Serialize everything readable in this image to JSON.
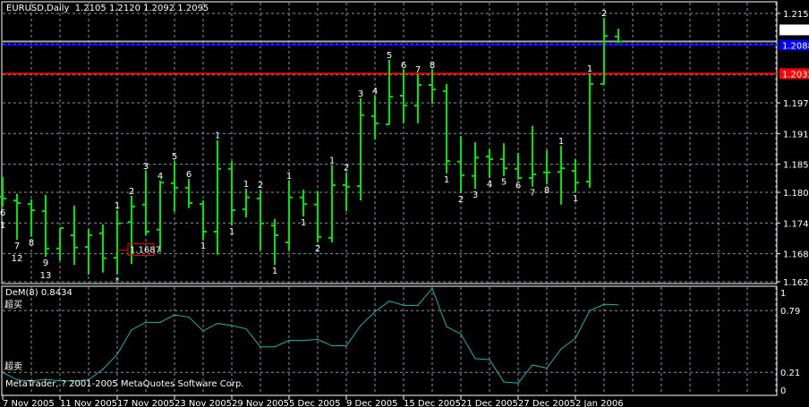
{
  "header": {
    "symbol_title": "EURUSD,Daily  1.2105 1.2120 1.2092 1.2095"
  },
  "indicator": {
    "title": "DeM(8) 0.8434",
    "overbought_label": "超买",
    "oversold_label": "超卖",
    "copyright": "MetaTrader, ? 2001-2005 MetaQuotes Software Corp.",
    "axis_labels": [
      "1",
      "0.79",
      "0.21",
      "0"
    ],
    "levels": [
      0.79,
      0.21
    ],
    "line_color": "#20B2AA"
  },
  "colors": {
    "bar": "#00E600",
    "grid": "#8494A4",
    "label_yellow": "#FFC000",
    "label_red": "#FF0000",
    "label_blue": "#0000FF",
    "line_blue": "#0000FF",
    "line_red": "#FF0000",
    "line_gray": "#A0A8B0"
  },
  "price_lines": [
    {
      "name": "bid-line",
      "price": 1.2095,
      "label": "1.2095",
      "color": "#A0A8B0",
      "label_bg": "#FFFFFF",
      "label_fg": "#000000"
    },
    {
      "name": "blue-hline",
      "price": 1.2088,
      "label": "1.2088",
      "color": "#0000FF",
      "label_bg": "#0000FF",
      "label_fg": "#FFFFFF"
    },
    {
      "name": "red-hline",
      "price": 1.2032,
      "label": "1.2032",
      "color": "#FF0000",
      "label_bg": "#FF0000",
      "label_fg": "#FFFFFF"
    }
  ],
  "price_annotation": {
    "text": "1.1687",
    "price": 1.1687,
    "bar": 8,
    "color": "#FF0000"
  },
  "chart_data": [
    {
      "type": "ohlc",
      "title": "EURUSD,Daily",
      "ylim": [
        1.1625,
        1.215
      ],
      "y_ticks": [
        "1.2150",
        "1.1975",
        "1.1915",
        "1.1855",
        "1.1800",
        "1.1740",
        "1.1680",
        "1.1625"
      ],
      "x_tick_labels": [
        "7 Nov 2005",
        "11 Nov 2005",
        "17 Nov 2005",
        "23 Nov 2005",
        "29 Nov 2005",
        "5 Dec 2005",
        "9 Dec 2005",
        "15 Dec 2005",
        "21 Dec 2005",
        "27 Dec 2005",
        "2 Jan 2006"
      ],
      "grid": true,
      "bars_ohlc": [
        [
          1.1791,
          1.183,
          1.1772,
          1.1788
        ],
        [
          1.1784,
          1.1797,
          1.1707,
          1.1779
        ],
        [
          1.1777,
          1.1786,
          1.1713,
          1.1765
        ],
        [
          1.1763,
          1.1795,
          1.1674,
          1.169
        ],
        [
          1.169,
          1.173,
          1.1667,
          1.173
        ],
        [
          1.1716,
          1.1774,
          1.1658,
          1.1692
        ],
        [
          1.1693,
          1.1728,
          1.1639,
          1.1716
        ],
        [
          1.172,
          1.1737,
          1.1643,
          1.1671
        ],
        [
          1.1672,
          1.1765,
          1.1639,
          1.1739
        ],
        [
          1.1742,
          1.1793,
          1.166,
          1.1772
        ],
        [
          1.1776,
          1.1842,
          1.1716,
          1.1723
        ],
        [
          1.1727,
          1.1823,
          1.1683,
          1.1819
        ],
        [
          1.1818,
          1.1861,
          1.1762,
          1.1809
        ],
        [
          1.1809,
          1.1826,
          1.1769,
          1.1779
        ],
        [
          1.1777,
          1.1784,
          1.1707,
          1.1723
        ],
        [
          1.1723,
          1.1902,
          1.1678,
          1.1846
        ],
        [
          1.1846,
          1.1861,
          1.1735,
          1.1765
        ],
        [
          1.1767,
          1.1807,
          1.1751,
          1.179
        ],
        [
          1.1788,
          1.1805,
          1.1686,
          1.1739
        ],
        [
          1.1735,
          1.1748,
          1.1658,
          1.1716
        ],
        [
          1.1702,
          1.1823,
          1.1686,
          1.179
        ],
        [
          1.179,
          1.1805,
          1.1753,
          1.1777
        ],
        [
          1.1776,
          1.1802,
          1.1702,
          1.1713
        ],
        [
          1.1711,
          1.1853,
          1.1702,
          1.1814
        ],
        [
          1.1814,
          1.1839,
          1.1763,
          1.1811
        ],
        [
          1.1812,
          1.1984,
          1.1784,
          1.1951
        ],
        [
          1.1949,
          1.1989,
          1.1903,
          1.1935
        ],
        [
          1.1933,
          1.2059,
          1.1933,
          1.1987
        ],
        [
          1.1989,
          1.204,
          1.1935,
          1.197
        ],
        [
          1.197,
          1.2031,
          1.1935,
          1.201
        ],
        [
          1.201,
          1.204,
          1.1973,
          1.2001
        ],
        [
          1.1998,
          1.2012,
          1.1837,
          1.1861
        ],
        [
          1.186,
          1.191,
          1.1798,
          1.1833
        ],
        [
          1.1832,
          1.1898,
          1.1807,
          1.1868
        ],
        [
          1.187,
          1.1884,
          1.1828,
          1.1865
        ],
        [
          1.1865,
          1.1896,
          1.1832,
          1.1847
        ],
        [
          1.1846,
          1.1877,
          1.1825,
          1.1828
        ],
        [
          1.1828,
          1.193,
          1.1811,
          1.1835
        ],
        [
          1.1839,
          1.1882,
          1.1816,
          1.1839
        ],
        [
          1.184,
          1.1891,
          1.1776,
          1.1847
        ],
        [
          1.1842,
          1.1865,
          1.18,
          1.1819
        ],
        [
          1.1821,
          1.2033,
          1.1809,
          1.2012
        ],
        [
          1.2012,
          1.2141,
          1.2012,
          1.2106
        ],
        [
          1.2105,
          1.212,
          1.2092,
          1.2095
        ]
      ],
      "bar_labels": [
        {
          "bar": 0,
          "text": "6",
          "color": "yellow",
          "side": "below",
          "row": 1
        },
        {
          "bar": 0,
          "text": "1",
          "color": "red",
          "side": "below",
          "row": 2
        },
        {
          "bar": 1,
          "text": "7",
          "color": "yellow",
          "side": "below",
          "row": 1
        },
        {
          "bar": 1,
          "text": "12",
          "color": "red",
          "side": "below",
          "row": 2
        },
        {
          "bar": 2,
          "text": "8",
          "color": "yellow",
          "side": "below",
          "row": 1
        },
        {
          "bar": 3,
          "text": "9",
          "color": "blue",
          "side": "below",
          "row": 1
        },
        {
          "bar": 3,
          "text": "13",
          "color": "red",
          "side": "below",
          "row": 2
        },
        {
          "bar": 8,
          "text": "1",
          "color": "yellow",
          "side": "above",
          "row": 1
        },
        {
          "bar": 8,
          "text": "*",
          "color": "red",
          "side": "below",
          "row": 1
        },
        {
          "bar": 9,
          "text": "2",
          "color": "yellow",
          "side": "above",
          "row": 1
        },
        {
          "bar": 10,
          "text": "3",
          "color": "yellow",
          "side": "above",
          "row": 1
        },
        {
          "bar": 11,
          "text": "4",
          "color": "yellow",
          "side": "above",
          "row": 1
        },
        {
          "bar": 12,
          "text": "5",
          "color": "yellow",
          "side": "above",
          "row": 1
        },
        {
          "bar": 13,
          "text": "6",
          "color": "yellow",
          "side": "above",
          "row": 1
        },
        {
          "bar": 14,
          "text": "1",
          "color": "yellow",
          "side": "below",
          "row": 1
        },
        {
          "bar": 15,
          "text": "1",
          "color": "yellow",
          "side": "above",
          "row": 1
        },
        {
          "bar": 16,
          "text": "1",
          "color": "yellow",
          "side": "below",
          "row": 1
        },
        {
          "bar": 17,
          "text": "1",
          "color": "yellow",
          "side": "above",
          "row": 1
        },
        {
          "bar": 18,
          "text": "2",
          "color": "yellow",
          "side": "above",
          "row": 1
        },
        {
          "bar": 19,
          "text": "1",
          "color": "yellow",
          "side": "below",
          "row": 1
        },
        {
          "bar": 20,
          "text": "1",
          "color": "yellow",
          "side": "above",
          "row": 1
        },
        {
          "bar": 21,
          "text": "1",
          "color": "yellow",
          "side": "below",
          "row": 1
        },
        {
          "bar": 22,
          "text": "2",
          "color": "yellow",
          "side": "below",
          "row": 1
        },
        {
          "bar": 23,
          "text": "1",
          "color": "yellow",
          "side": "above",
          "row": 1
        },
        {
          "bar": 24,
          "text": "2",
          "color": "yellow",
          "side": "above",
          "row": 1
        },
        {
          "bar": 25,
          "text": "3",
          "color": "yellow",
          "side": "above",
          "row": 1
        },
        {
          "bar": 26,
          "text": "4",
          "color": "yellow",
          "side": "above",
          "row": 1
        },
        {
          "bar": 27,
          "text": "5",
          "color": "yellow",
          "side": "above",
          "row": 1
        },
        {
          "bar": 28,
          "text": "6",
          "color": "yellow",
          "side": "above",
          "row": 1
        },
        {
          "bar": 29,
          "text": "7",
          "color": "yellow",
          "side": "above",
          "row": 1
        },
        {
          "bar": 30,
          "text": "8",
          "color": "yellow",
          "side": "above",
          "row": 1
        },
        {
          "bar": 31,
          "text": "1",
          "color": "yellow",
          "side": "below",
          "row": 1
        },
        {
          "bar": 32,
          "text": "2",
          "color": "yellow",
          "side": "below",
          "row": 1
        },
        {
          "bar": 33,
          "text": "3",
          "color": "yellow",
          "side": "below",
          "row": 1
        },
        {
          "bar": 34,
          "text": "4",
          "color": "yellow",
          "side": "below",
          "row": 1
        },
        {
          "bar": 35,
          "text": "5",
          "color": "yellow",
          "side": "below",
          "row": 1
        },
        {
          "bar": 36,
          "text": "6",
          "color": "yellow",
          "side": "below",
          "row": 1
        },
        {
          "bar": 37,
          "text": "7",
          "color": "yellow",
          "side": "below",
          "row": 1
        },
        {
          "bar": 38,
          "text": "8",
          "color": "yellow",
          "side": "below",
          "row": 1
        },
        {
          "bar": 39,
          "text": "1",
          "color": "yellow",
          "side": "above",
          "row": 1
        },
        {
          "bar": 40,
          "text": "1",
          "color": "yellow",
          "side": "below",
          "row": 1
        },
        {
          "bar": 41,
          "text": "1",
          "color": "yellow",
          "side": "above",
          "row": 1
        },
        {
          "bar": 42,
          "text": "2",
          "color": "yellow",
          "side": "above",
          "row": 1
        }
      ]
    },
    {
      "type": "line",
      "title": "DeM(8) 0.8434",
      "ylim": [
        0,
        1
      ],
      "values": [
        0.21,
        0.14,
        0.13,
        0.145,
        0.13,
        0.13,
        0.14,
        0.24,
        0.38,
        0.61,
        0.68,
        0.68,
        0.75,
        0.73,
        0.6,
        0.67,
        0.65,
        0.62,
        0.45,
        0.45,
        0.51,
        0.51,
        0.52,
        0.46,
        0.46,
        0.65,
        0.78,
        0.88,
        0.84,
        0.84,
        1.0,
        0.64,
        0.57,
        0.34,
        0.33,
        0.12,
        0.11,
        0.28,
        0.25,
        0.43,
        0.53,
        0.79,
        0.85,
        0.8434
      ]
    }
  ]
}
